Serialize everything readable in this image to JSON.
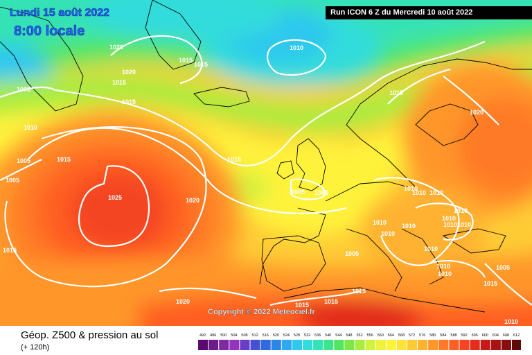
{
  "header": {
    "date": "Lundi 15 août 2022",
    "time": "8:00 locale",
    "run": "Run ICON 6 Z du Mercredi 10 août 2022"
  },
  "map": {
    "copyright": "Copyright © 2022 Meteociel.fr",
    "isobar_labels": [
      "1020",
      "1010",
      "1015",
      "1015",
      "1005",
      "1020",
      "1015",
      "1015",
      "1015",
      "1010",
      "1005",
      "1015",
      "1005",
      "1025",
      "1020",
      "1015",
      "1015",
      "1020",
      "1005",
      "1005",
      "1010",
      "1010",
      "1010",
      "1010",
      "1010",
      "1010",
      "1010",
      "1010",
      "1010",
      "1010",
      "1010",
      "1010",
      "1005",
      "1005",
      "1015",
      "1015",
      "1020",
      "1015",
      "1015",
      "1010",
      "1010"
    ]
  },
  "footer": {
    "title": "Géop. Z500 & pression au sol",
    "subtitle": "(+ 120h)"
  },
  "legend": {
    "ticks": [
      "492",
      "496",
      "500",
      "504",
      "508",
      "512",
      "516",
      "520",
      "524",
      "528",
      "532",
      "536",
      "540",
      "544",
      "548",
      "552",
      "556",
      "560",
      "564",
      "568",
      "572",
      "576",
      "580",
      "584",
      "588",
      "592",
      "596",
      "600",
      "604",
      "608",
      "612"
    ],
    "colors": [
      "#5a0a6e",
      "#6e1a8a",
      "#7e2aa2",
      "#9433bf",
      "#6a3cc8",
      "#4650d2",
      "#2f6ade",
      "#2b86e8",
      "#2ea8ee",
      "#2fc8ee",
      "#33dcdc",
      "#35e2b6",
      "#3de48a",
      "#52e660",
      "#7ee648",
      "#a8ec40",
      "#d0f23e",
      "#eef23c",
      "#fff23a",
      "#ffe23a",
      "#ffcc34",
      "#ffb230",
      "#ff962c",
      "#ff7a28",
      "#ff5e24",
      "#f44420",
      "#e22c1c",
      "#c81818",
      "#a81414",
      "#861010",
      "#5e0a0a"
    ]
  }
}
